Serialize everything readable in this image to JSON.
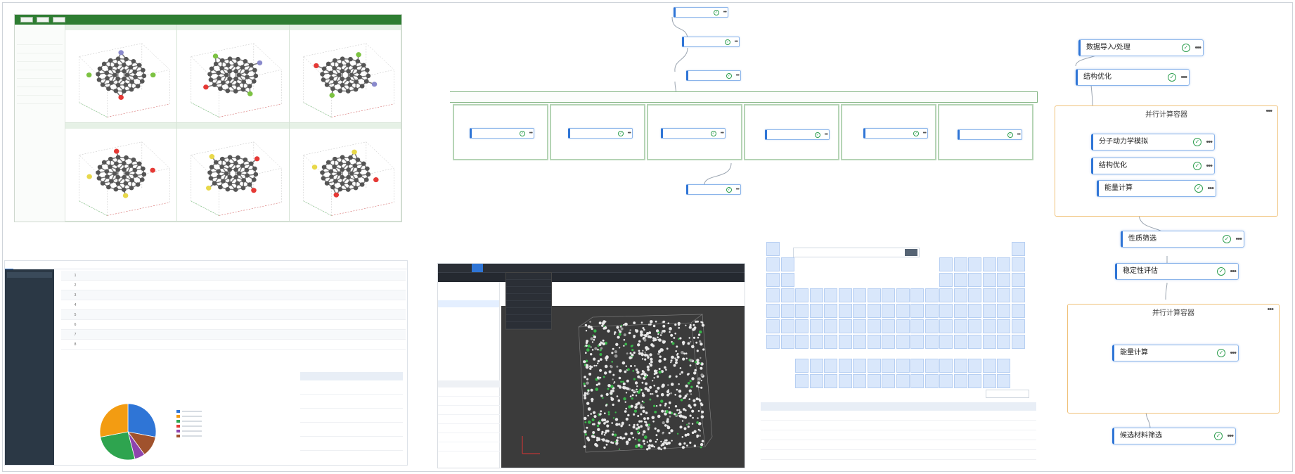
{
  "molecule_viewer": {
    "toolbar": {
      "buttons": [
        "",
        "",
        ""
      ]
    },
    "sidebar": {
      "title": "",
      "items": [
        "",
        "",
        "",
        "",
        "",
        "",
        "",
        ""
      ]
    },
    "cells": [
      "",
      "",
      "",
      "",
      "",
      ""
    ],
    "atom_colors": {
      "carbon": "#555555",
      "fluorine": "#7cc242",
      "oxygen": "#e53935",
      "sulfur": "#e8d84a",
      "hydrogen": "#b0b0b0",
      "nitrogen": "#8a8acc"
    }
  },
  "top_workflow": {
    "top_nodes": [
      "",
      "",
      ""
    ],
    "group_title": "",
    "parallel_nodes": [
      "",
      "",
      "",
      "",
      "",
      ""
    ],
    "bottom_node": ""
  },
  "right_workflow": {
    "node_1": "数据导入/处理",
    "node_2": "结构优化",
    "group_1_title": "并行计算容器",
    "group_1_nodes": [
      "分子动力学模拟",
      "结构优化",
      "能量计算"
    ],
    "node_3": "性质筛选",
    "node_4": "稳定性评估",
    "group_2_title": "并行计算容器",
    "group_2_nodes": [
      "能量计算"
    ],
    "node_5": "候选材料筛选"
  },
  "table_panel": {
    "tabs": [
      "",
      ""
    ],
    "sidebar_button": "",
    "rows": [
      {
        "idx": "1",
        "name": "",
        "val": "",
        "link": ""
      },
      {
        "idx": "2",
        "name": "",
        "val": "",
        "link": ""
      },
      {
        "idx": "3",
        "name": "",
        "val": "",
        "link": ""
      },
      {
        "idx": "4",
        "name": "",
        "val": "",
        "link": ""
      },
      {
        "idx": "5",
        "name": "",
        "val": "",
        "link": ""
      },
      {
        "idx": "6",
        "name": "",
        "val": "",
        "link": ""
      },
      {
        "idx": "7",
        "name": "",
        "val": "",
        "link": ""
      },
      {
        "idx": "8",
        "name": "",
        "val": "",
        "link": ""
      }
    ],
    "summary_headers": [
      "",
      "",
      ""
    ],
    "summary_rows": [
      [
        "",
        "",
        ""
      ],
      [
        "",
        "",
        ""
      ],
      [
        "",
        "",
        ""
      ],
      [
        "",
        "",
        ""
      ],
      [
        "",
        "",
        ""
      ]
    ],
    "pie": {
      "slices": [
        {
          "value": 28,
          "color": "#2f75d6"
        },
        {
          "value": 12,
          "color": "#a0522d"
        },
        {
          "value": 6,
          "color": "#8e44ad"
        },
        {
          "value": 26,
          "color": "#2ea44f"
        },
        {
          "value": 28,
          "color": "#f39c12"
        }
      ]
    },
    "legend_colors": [
      "#2f75d6",
      "#f39c12",
      "#2ea44f",
      "#e53935",
      "#8e44ad",
      "#a0522d"
    ]
  },
  "dark_viewer": {
    "menu": [
      "",
      "",
      "",
      "",
      ""
    ],
    "dropdown_items": [
      "",
      "",
      "",
      "",
      "",
      "",
      "",
      ""
    ],
    "tree": [
      "",
      "",
      ""
    ],
    "props_header": "",
    "props": [
      [
        "",
        ""
      ],
      [
        "",
        ""
      ],
      [
        "",
        ""
      ],
      [
        "",
        ""
      ],
      [
        "",
        ""
      ],
      [
        "",
        ""
      ],
      [
        "",
        ""
      ]
    ]
  },
  "periodic_panel": {
    "title": "",
    "search_placeholder": "",
    "select_button": "",
    "table_label": "",
    "table_headers": [
      "",
      "",
      "",
      "",
      "",
      "",
      "",
      "",
      ""
    ],
    "table_rows": [
      [
        "",
        "",
        "",
        "",
        "",
        "",
        "",
        "",
        ""
      ],
      [
        "",
        "",
        "",
        "",
        "",
        "",
        "",
        "",
        ""
      ],
      [
        "",
        "",
        "",
        "",
        "",
        "",
        "",
        "",
        ""
      ],
      [
        "",
        "",
        "",
        "",
        "",
        "",
        "",
        "",
        ""
      ],
      [
        "",
        "",
        "",
        "",
        "",
        "",
        "",
        "",
        ""
      ]
    ]
  }
}
